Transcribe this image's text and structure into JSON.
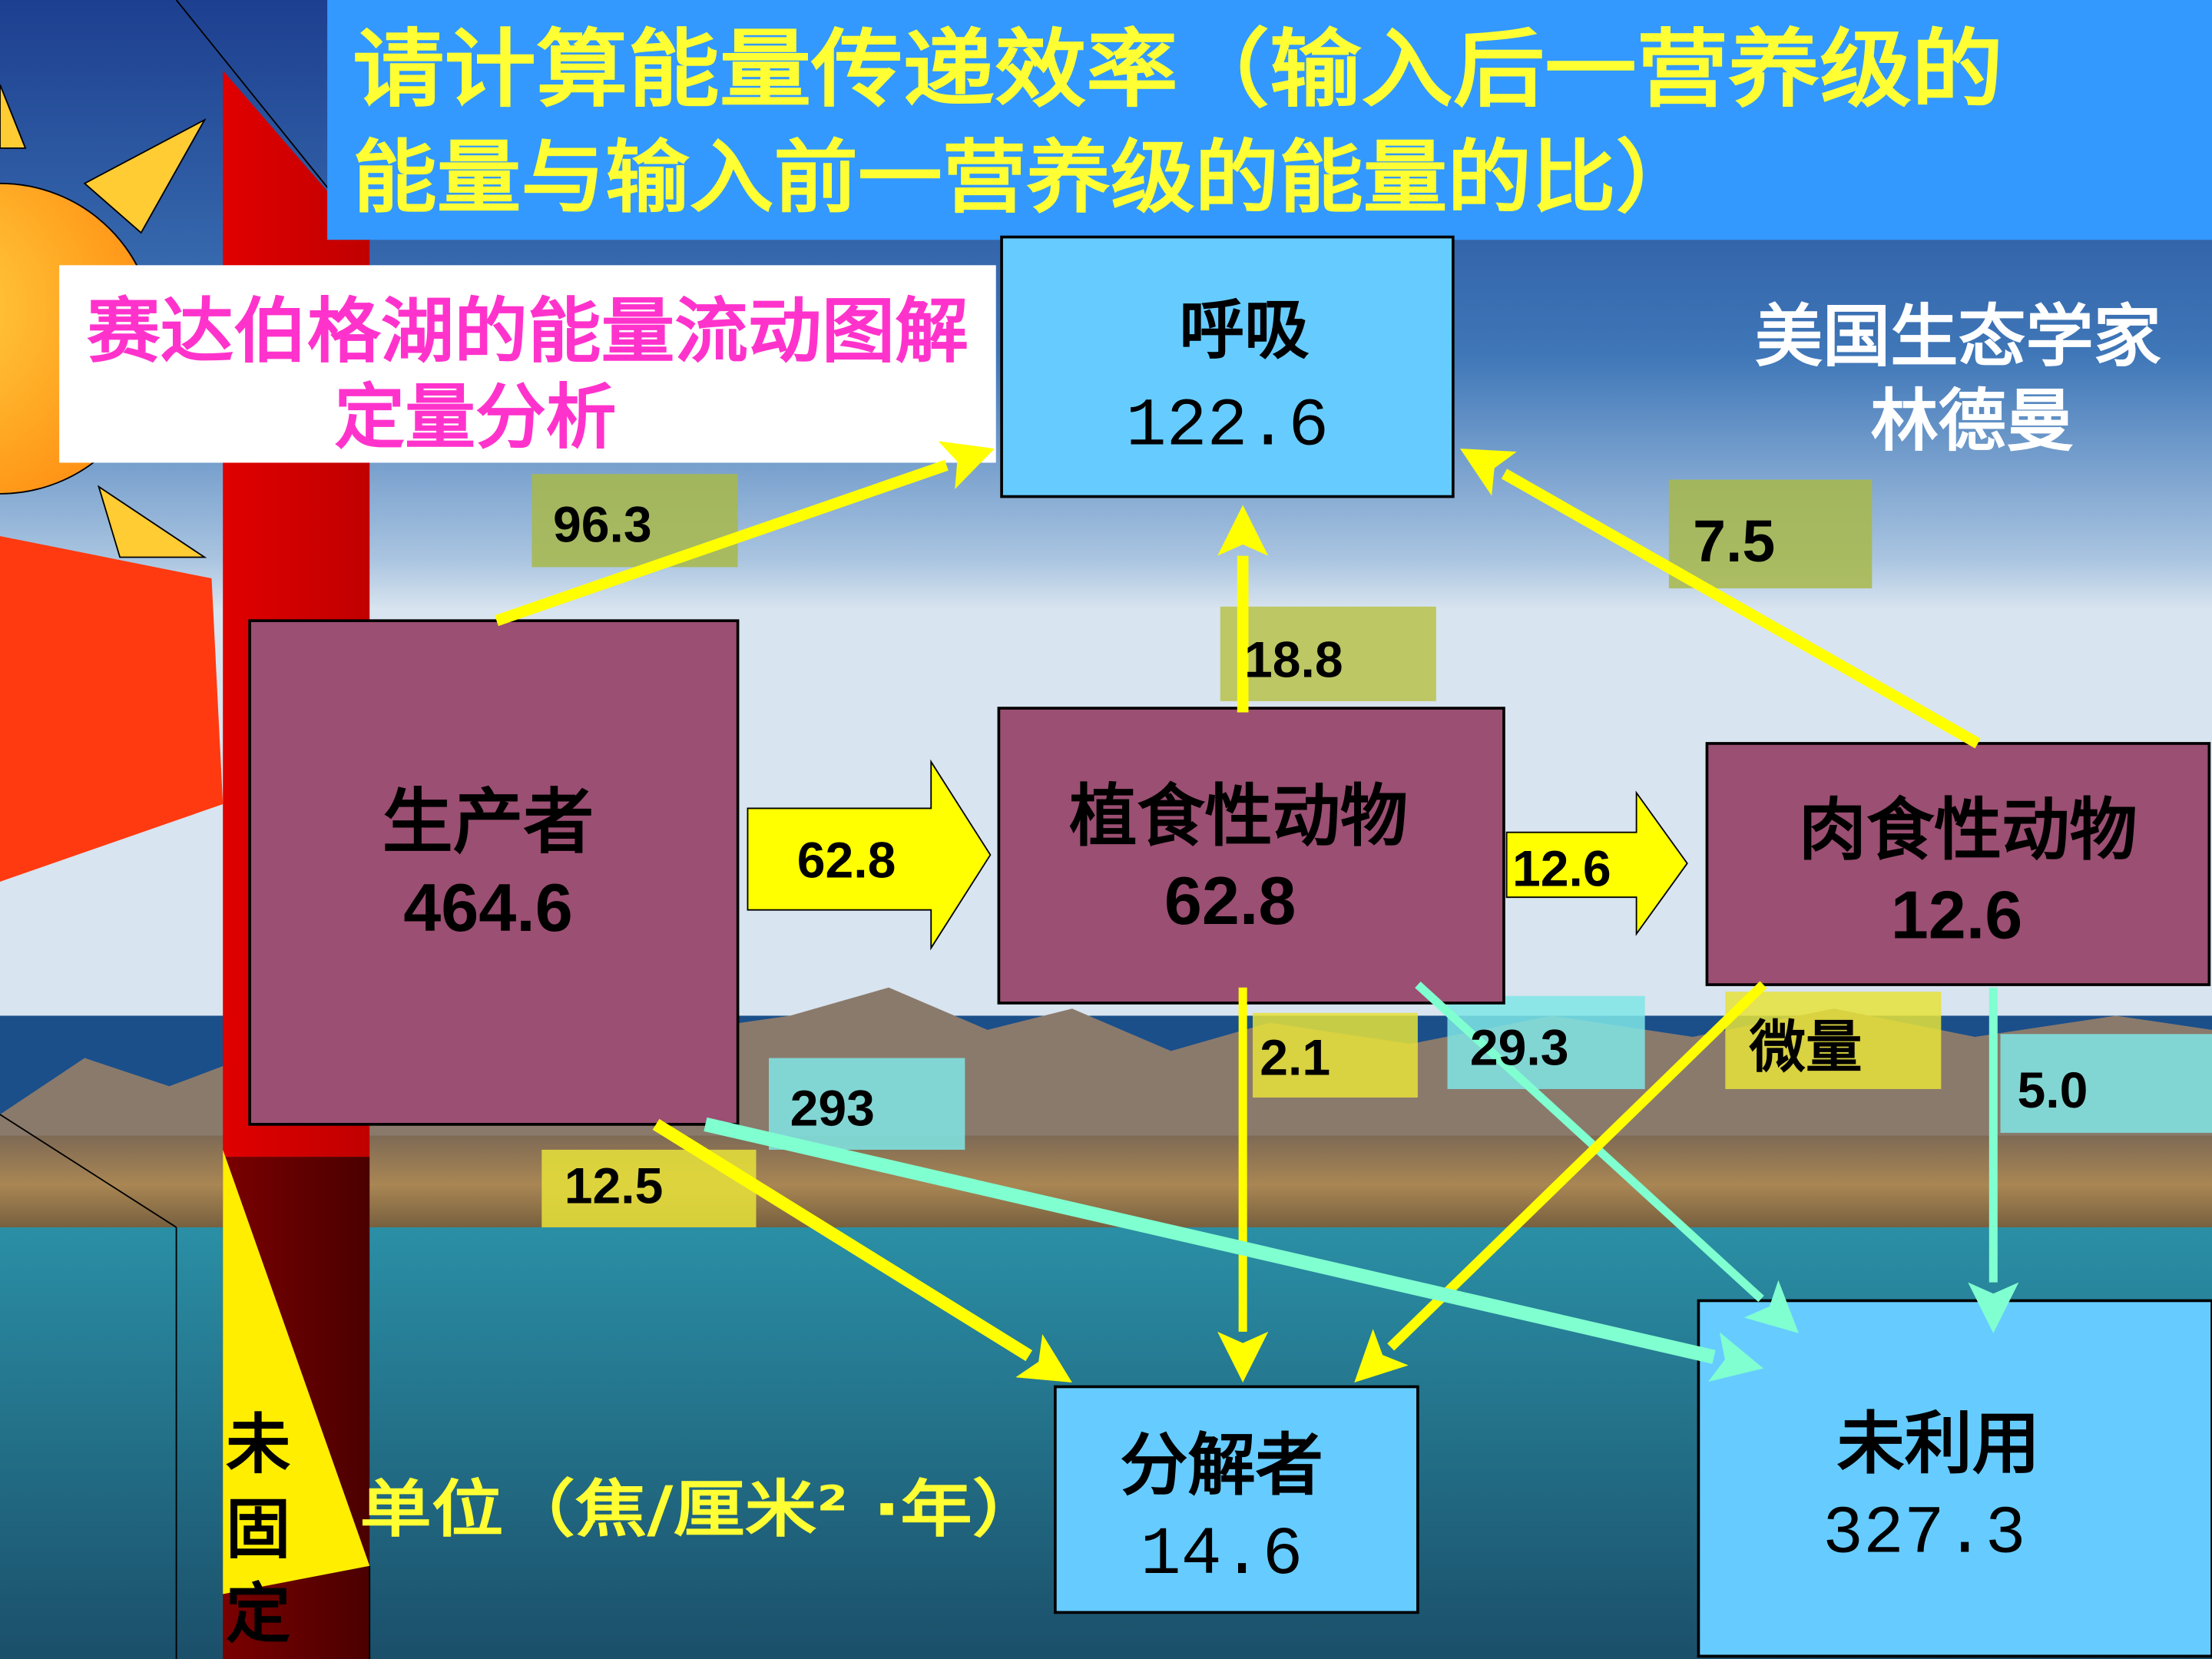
{
  "title": {
    "line1": "请计算能量传递效率（输入后一营养级的",
    "line2": "能量与输入前一营养级的能量的比）"
  },
  "subtitle": {
    "line1": "赛达伯格湖的能量流动图解",
    "line2": "定量分析"
  },
  "author": {
    "line1": "美国生态学家",
    "line2": "林德曼"
  },
  "sun_label": [
    "未",
    "固",
    "定"
  ],
  "unit_label": "单位（焦/厘米² ·年）",
  "nodes": {
    "producer": {
      "name": "生产者",
      "value": "464.6"
    },
    "herbivore": {
      "name": "植食性动物",
      "value": "62.8"
    },
    "carnivore": {
      "name": "肉食性动物",
      "value": "12.6"
    },
    "respiration": {
      "name": "呼吸",
      "value": "122.6"
    },
    "decomposer": {
      "name": "分解者",
      "value": "14.6"
    },
    "unused": {
      "name": "未利用",
      "value": "327.3"
    }
  },
  "flows": {
    "producer_respiration": "96.3",
    "producer_herbivore": "62.8",
    "herbivore_respiration": "18.8",
    "carnivore_respiration": "7.5",
    "herbivore_carnivore": "12.6",
    "herbivore_decomposer": "2.1",
    "herbivore_unused": "29.3",
    "carnivore_decomposer": "微量",
    "carnivore_unused": "5.0",
    "producer_unused": "293",
    "producer_decomposer": "12.5"
  },
  "colors": {
    "title_bg": "#3399ff",
    "title_text": "#ffff33",
    "node_purple": "#9b4f72",
    "node_blue": "#66ccff",
    "arrow_yellow": "#ffff00",
    "arrow_cyan": "#80ffd0",
    "subtitle_pink": "#ff33cc"
  }
}
